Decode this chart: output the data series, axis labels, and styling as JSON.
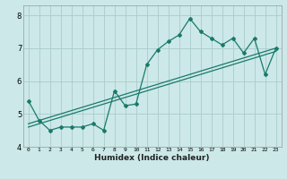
{
  "xlabel": "Humidex (Indice chaleur)",
  "background_color": "#cce8e8",
  "grid_color": "#aacccc",
  "line_color": "#1a7a6a",
  "x_data": [
    0,
    1,
    2,
    3,
    4,
    5,
    6,
    7,
    8,
    9,
    10,
    11,
    12,
    13,
    14,
    15,
    16,
    17,
    18,
    19,
    20,
    21,
    22,
    23
  ],
  "y_main": [
    5.4,
    4.8,
    4.5,
    4.6,
    4.6,
    4.6,
    4.7,
    4.5,
    5.7,
    5.25,
    5.3,
    6.5,
    6.95,
    7.2,
    7.4,
    7.9,
    7.5,
    7.3,
    7.1,
    7.3,
    6.85,
    7.3,
    6.2,
    7.0
  ],
  "trend1_x": [
    0,
    23
  ],
  "trend1_y": [
    4.6,
    6.9
  ],
  "trend2_x": [
    0,
    23
  ],
  "trend2_y": [
    4.7,
    7.0
  ],
  "xlim": [
    -0.5,
    23.5
  ],
  "ylim": [
    4.0,
    8.3
  ],
  "yticks": [
    4,
    5,
    6,
    7,
    8
  ],
  "xticks": [
    0,
    1,
    2,
    3,
    4,
    5,
    6,
    7,
    8,
    9,
    10,
    11,
    12,
    13,
    14,
    15,
    16,
    17,
    18,
    19,
    20,
    21,
    22,
    23
  ]
}
